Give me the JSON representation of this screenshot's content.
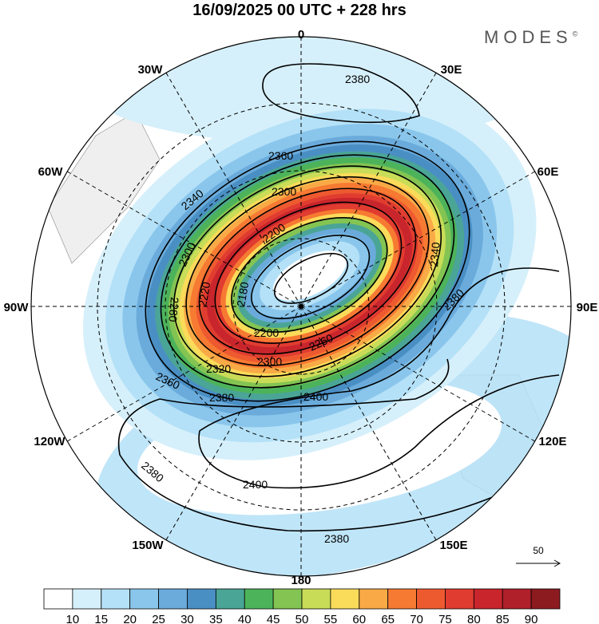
{
  "title": "16/09/2025  00 UTC  + 228 hrs",
  "logo": "MODES",
  "logo_mark": "©",
  "longitude_labels": [
    "0",
    "30E",
    "60E",
    "90E",
    "120E",
    "150E",
    "180",
    "150W",
    "120W",
    "90W",
    "60W",
    "30W"
  ],
  "contour_labels": [
    "2380",
    "2360",
    "2340",
    "2300",
    "2200",
    "2180",
    "2200",
    "2260",
    "2300",
    "2320",
    "2360",
    "2380",
    "2400",
    "2340",
    "2380",
    "2300",
    "2280",
    "2220",
    "2400",
    "2380",
    "2380"
  ],
  "vector_reference": {
    "label": "50"
  },
  "colorbar": {
    "ticks": [
      "10",
      "15",
      "20",
      "25",
      "30",
      "35",
      "40",
      "45",
      "50",
      "55",
      "60",
      "65",
      "70",
      "75",
      "80",
      "85",
      "90"
    ],
    "colors": [
      "#ffffff",
      "#d6f0fb",
      "#b4e1f7",
      "#8ac6ec",
      "#6aabdb",
      "#4a8fc4",
      "#4aa596",
      "#4db35a",
      "#84c452",
      "#c9dc58",
      "#fbdb5a",
      "#f9aa46",
      "#f77a32",
      "#ee5a30",
      "#e03c30",
      "#c9252c",
      "#b0202a",
      "#8c1b20"
    ]
  }
}
